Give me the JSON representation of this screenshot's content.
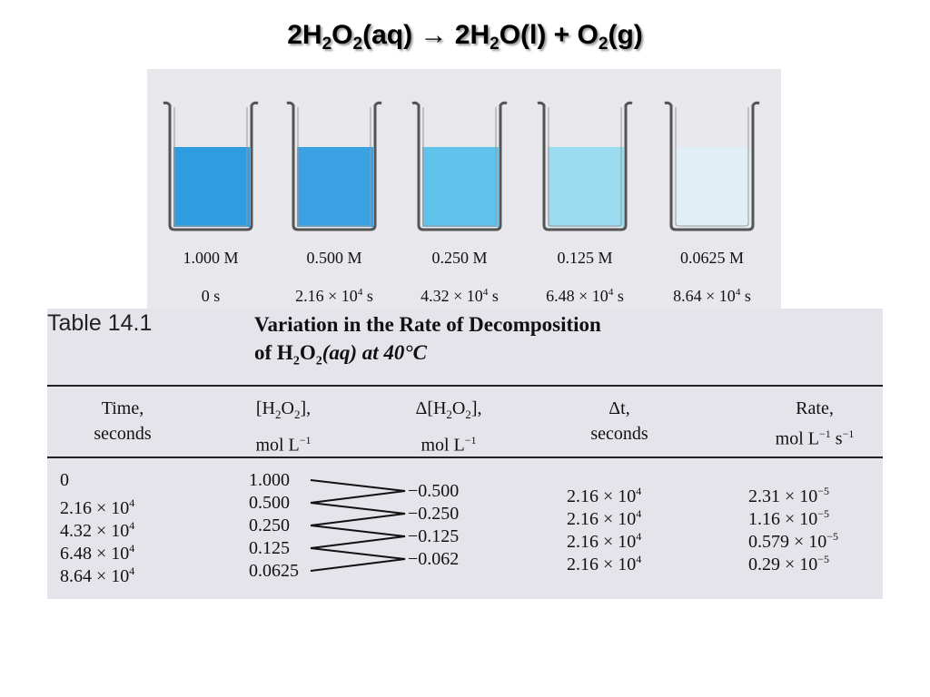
{
  "title": {
    "prefix": "2H",
    "s1": "2",
    "mid1": "O",
    "s2": "2",
    "mid2": "(aq) → 2H",
    "s3": "2",
    "mid3": "O(l) + O",
    "s4": "2",
    "suffix": "(g)"
  },
  "beakers": [
    {
      "concentration": "1.000 M",
      "time_text": "0 s",
      "time_exp": "",
      "time_unit": "",
      "color": "#2f9be0"
    },
    {
      "concentration": "0.500 M",
      "time_text": "2.16 × 10",
      "time_exp": "4",
      "time_unit": " s",
      "color": "#3aa2e2"
    },
    {
      "concentration": "0.250 M",
      "time_text": "4.32 × 10",
      "time_exp": "4",
      "time_unit": " s",
      "color": "#5fc3ec"
    },
    {
      "concentration": "0.125 M",
      "time_text": "6.48 × 10",
      "time_exp": "4",
      "time_unit": " s",
      "color": "#9bdcf0"
    },
    {
      "concentration": "0.0625 M",
      "time_text": "8.64 × 10",
      "time_exp": "4",
      "time_unit": " s",
      "color": "#e0eef6"
    }
  ],
  "table": {
    "label": "Table 14.1",
    "caption_line1": "Variation in the Rate of Decomposition",
    "caption_line2_a": "of H",
    "caption_line2_s1": "2",
    "caption_line2_b": "O",
    "caption_line2_s2": "2",
    "caption_line2_c": "(aq) at 40°C",
    "headers": {
      "time_1": "Time,",
      "time_2": "seconds",
      "conc_1a": "[H",
      "conc_1s1": "2",
      "conc_1b": "O",
      "conc_1s2": "2",
      "conc_1c": "],",
      "conc_2a": "mol L",
      "conc_2exp": "−1",
      "dconc_1a": "Δ[H",
      "dconc_1s1": "2",
      "dconc_1b": "O",
      "dconc_1s2": "2",
      "dconc_1c": "],",
      "dconc_2a": "mol L",
      "dconc_2exp": "−1",
      "dt_1": "Δt,",
      "dt_2": "seconds",
      "rate_1": "Rate,",
      "rate_2a": "mol L",
      "rate_2exp1": "−1",
      "rate_2b": " s",
      "rate_2exp2": "−1"
    },
    "times": [
      {
        "base": "0",
        "exp": ""
      },
      {
        "base": "2.16 × 10",
        "exp": "4"
      },
      {
        "base": "4.32 × 10",
        "exp": "4"
      },
      {
        "base": "6.48 × 10",
        "exp": "4"
      },
      {
        "base": "8.64 × 10",
        "exp": "4"
      }
    ],
    "concentrations": [
      "1.000",
      "0.500",
      "0.250",
      "0.125",
      "0.0625"
    ],
    "delta_conc": [
      "−0.500",
      "−0.250",
      "−0.125",
      "−0.062"
    ],
    "delta_t": [
      {
        "base": "2.16 × 10",
        "exp": "4"
      },
      {
        "base": "2.16 × 10",
        "exp": "4"
      },
      {
        "base": "2.16 × 10",
        "exp": "4"
      },
      {
        "base": "2.16 × 10",
        "exp": "4"
      }
    ],
    "rates": [
      {
        "base": "2.31 × 10",
        "exp": "−5"
      },
      {
        "base": "1.16 × 10",
        "exp": "−5"
      },
      {
        "base": "0.579 × 10",
        "exp": "−5"
      },
      {
        "base": "0.29 × 10",
        "exp": "−5"
      }
    ]
  }
}
